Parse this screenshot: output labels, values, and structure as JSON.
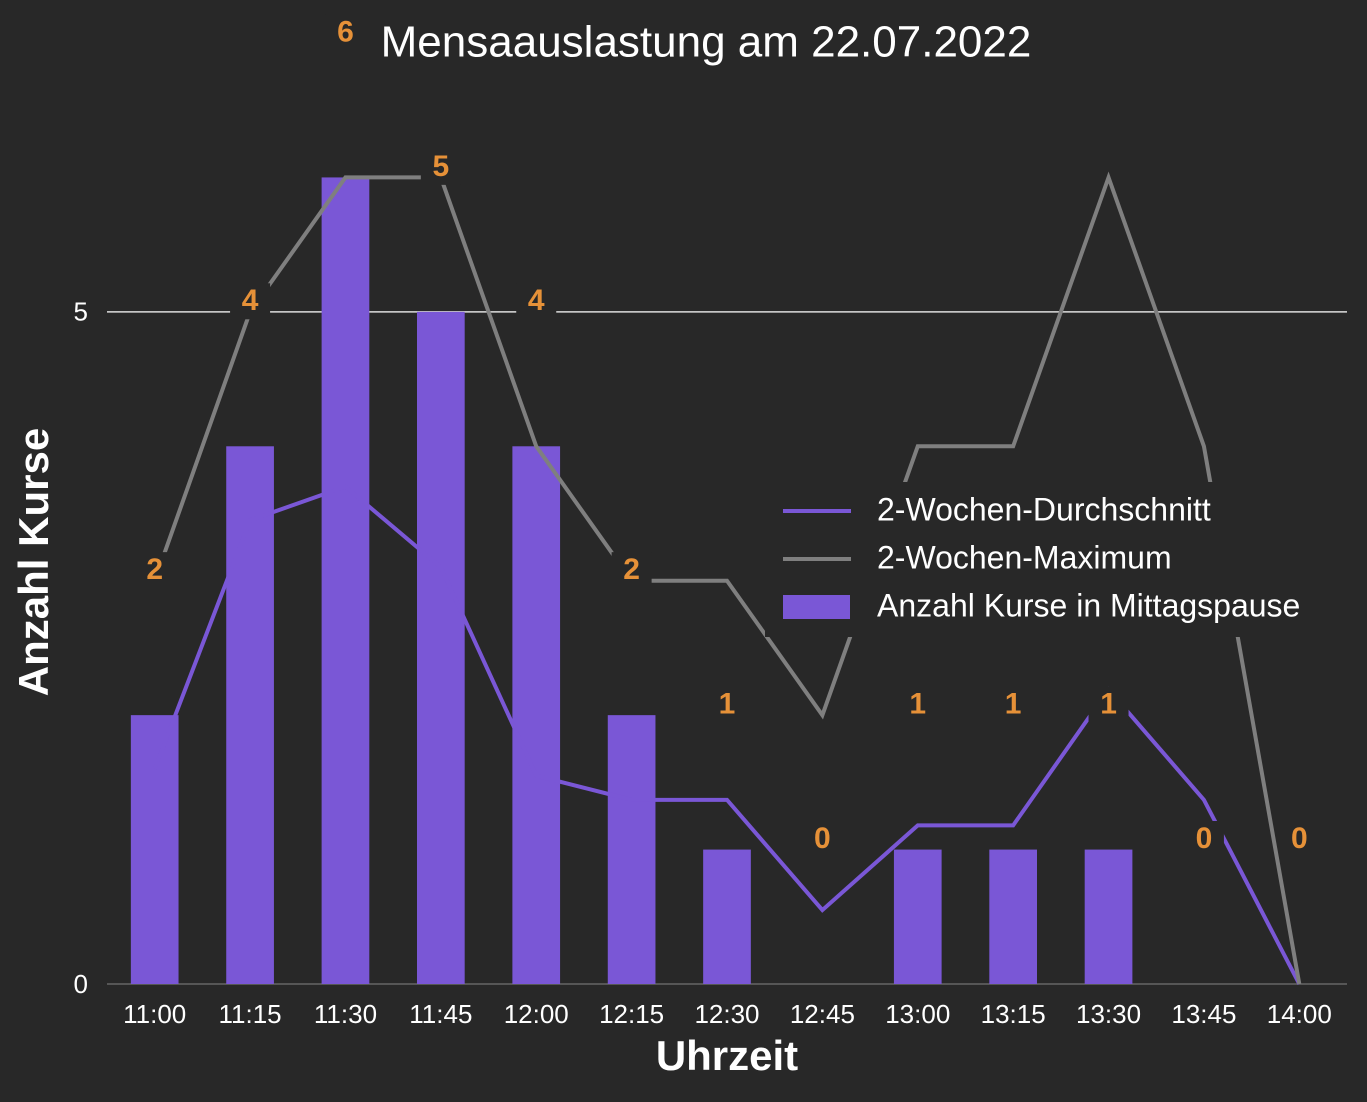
{
  "chart_data": {
    "type": "bar",
    "title": "Mensaauslastung am 22.07.2022",
    "x_label": "Uhrzeit",
    "y_label": "Anzahl Kurse",
    "categories": [
      "11:00",
      "11:15",
      "11:30",
      "11:45",
      "12:00",
      "12:15",
      "12:30",
      "12:45",
      "13:00",
      "13:15",
      "13:30",
      "13:45",
      "14:00"
    ],
    "series": [
      {
        "name": "2-Wochen-Durchschnitt",
        "type": "line",
        "color": "#7a57d6",
        "values": [
          1.6,
          3.45,
          3.7,
          3.1,
          1.55,
          1.37,
          1.37,
          0.55,
          1.18,
          1.18,
          2.19,
          1.37,
          0
        ]
      },
      {
        "name": "2-Wochen-Maximum",
        "type": "line",
        "color": "#7f7f7f",
        "values": [
          3,
          5,
          6,
          6,
          4,
          3,
          3,
          2,
          4,
          4,
          6,
          4,
          0
        ]
      },
      {
        "name": "Anzahl Kurse in Mittagspause",
        "type": "bar",
        "color": "#7a57d6",
        "values": [
          2,
          4,
          6,
          5,
          4,
          2,
          1,
          0,
          1,
          1,
          1,
          0,
          0
        ]
      }
    ],
    "value_label_color": "#e69138",
    "ylim": [
      0,
      7
    ],
    "yticks": [
      0,
      5
    ],
    "grid": true,
    "legend": "right"
  }
}
